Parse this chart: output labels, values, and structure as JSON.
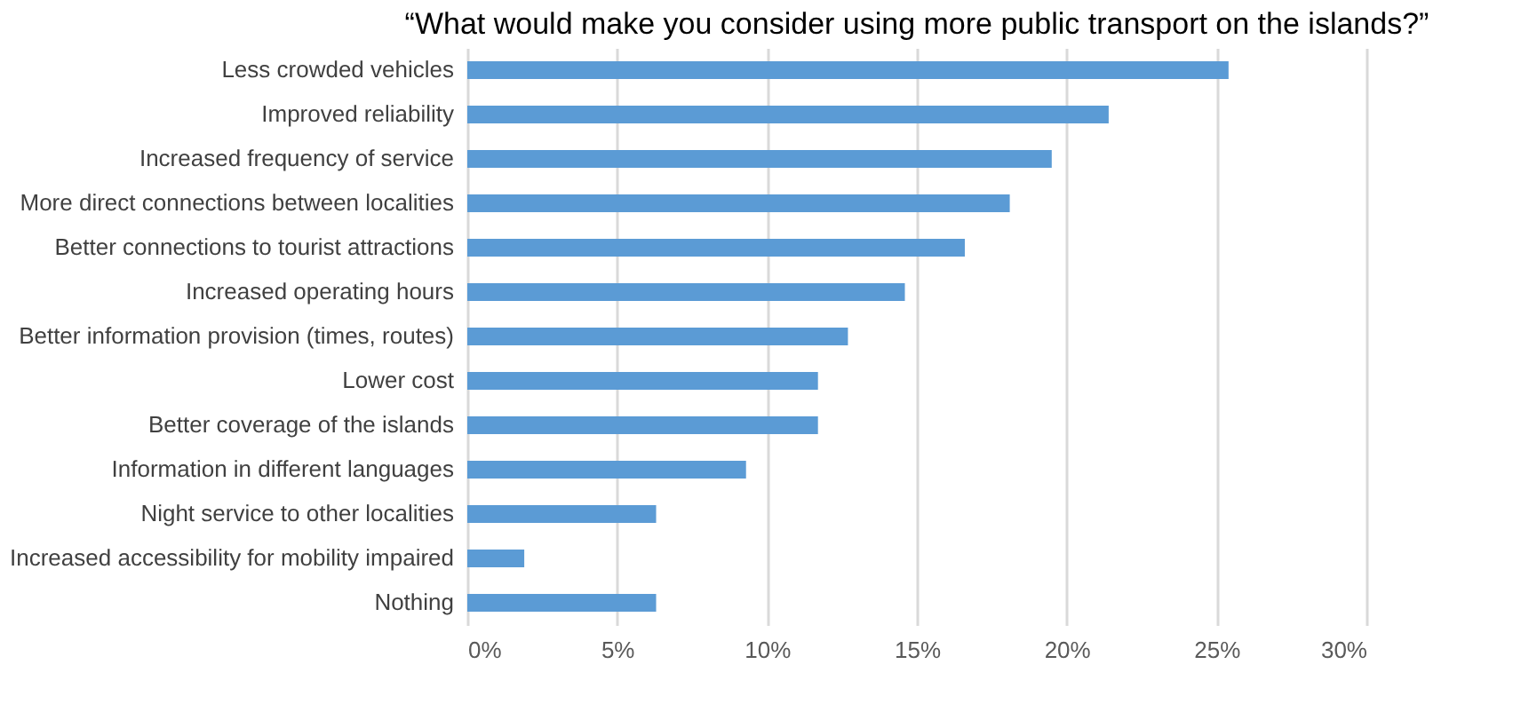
{
  "chart_data": {
    "type": "bar",
    "orientation": "horizontal",
    "title": "“What would make you consider using more public transport on the islands?”",
    "categories": [
      "Less crowded vehicles",
      "Improved reliability",
      "Increased frequency of service",
      "More direct connections between localities",
      "Better connections to tourist attractions",
      "Increased operating hours",
      "Better information provision (times, routes)",
      "Lower cost ",
      "Better coverage of the islands",
      "Information in different languages",
      "Night service to other localities",
      "Increased accessibility for mobility impaired",
      "Nothing"
    ],
    "values": [
      25.4,
      21.4,
      19.5,
      18.1,
      16.6,
      14.6,
      12.7,
      11.7,
      11.7,
      9.3,
      6.3,
      1.9,
      6.3
    ],
    "color": "#5b9bd5",
    "xlim": [
      0,
      30
    ],
    "xticks": [
      {
        "value": 0,
        "label": "0%"
      },
      {
        "value": 5,
        "label": "5%"
      },
      {
        "value": 10,
        "label": "10%"
      },
      {
        "value": 15,
        "label": "15%"
      },
      {
        "value": 20,
        "label": "20%"
      },
      {
        "value": 25,
        "label": "25%"
      },
      {
        "value": 30,
        "label": "30%"
      }
    ],
    "grid": "x"
  }
}
